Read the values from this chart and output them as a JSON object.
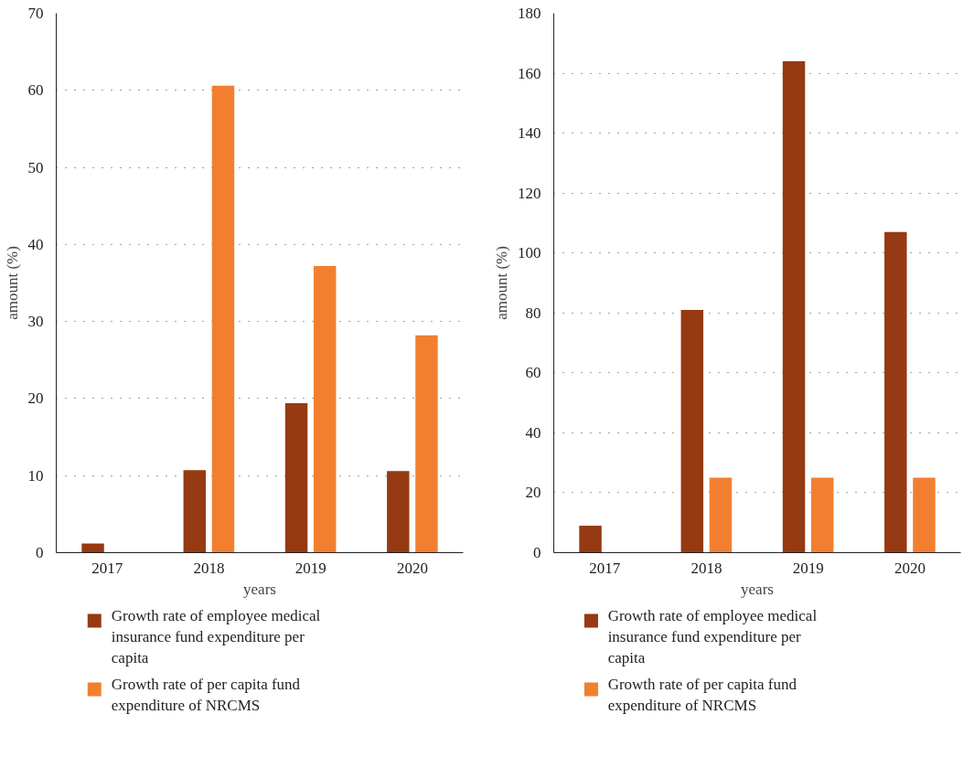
{
  "chart_data": [
    {
      "type": "bar",
      "categories": [
        "2017",
        "2018",
        "2019",
        "2020"
      ],
      "xlabel": "years",
      "ylabel": "amount (%)",
      "ylim": [
        0,
        70
      ],
      "yticks": [
        0,
        10,
        20,
        30,
        40,
        50,
        60,
        70
      ],
      "grid": "y",
      "legend": "bottom",
      "series": [
        {
          "name": "Growth rate of employee medical insurance fund expenditure per capita",
          "color": "#953a12",
          "values": [
            1.2,
            10.7,
            19.4,
            10.6
          ]
        },
        {
          "name": "Growth rate of per capita fund expenditure of NRCMS",
          "color": "#f27f30",
          "values": [
            null,
            60.6,
            37.2,
            28.2
          ]
        }
      ]
    },
    {
      "type": "bar",
      "categories": [
        "2017",
        "2018",
        "2019",
        "2020"
      ],
      "xlabel": "years",
      "ylabel": "amount (%)",
      "ylim": [
        0,
        180
      ],
      "yticks": [
        0,
        20,
        40,
        60,
        80,
        100,
        120,
        140,
        160,
        180
      ],
      "grid": "y",
      "legend": "bottom",
      "series": [
        {
          "name": "Growth rate of employee medical insurance fund expenditure per capita",
          "color": "#953a12",
          "values": [
            9,
            81,
            164,
            107
          ]
        },
        {
          "name": "Growth rate of per capita fund expenditure of NRCMS",
          "color": "#f27f30",
          "values": [
            null,
            25,
            25,
            25
          ]
        }
      ]
    }
  ]
}
